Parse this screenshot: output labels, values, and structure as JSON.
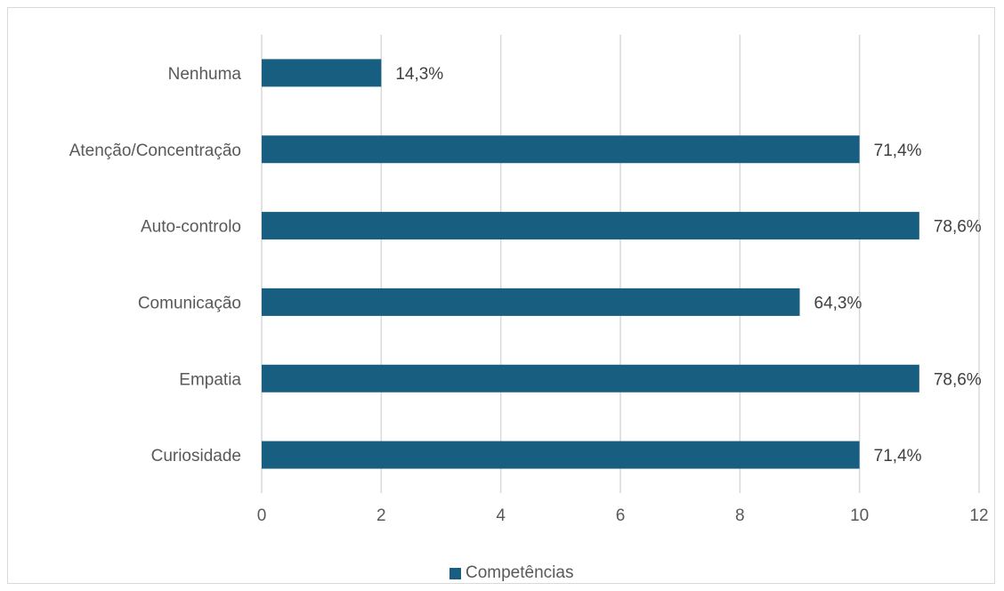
{
  "chart_data": {
    "type": "bar",
    "orientation": "horizontal",
    "categories": [
      "Nenhuma",
      "Atenção/Concentração",
      "Auto-controlo",
      "Comunicação",
      "Empatia",
      "Curiosidade"
    ],
    "series": [
      {
        "name": "Competências",
        "values": [
          2,
          10,
          11,
          9,
          11,
          10
        ],
        "data_labels": [
          "14,3%",
          "71,4%",
          "78,6%",
          "64,3%",
          "78,6%",
          "71,4%"
        ],
        "color": "#175e80"
      }
    ],
    "xlim": [
      0,
      12
    ],
    "xticks": [
      "0",
      "2",
      "4",
      "6",
      "8",
      "10",
      "12"
    ],
    "grid": "vertical",
    "legend": "bottom",
    "title": "",
    "xlabel": "",
    "ylabel": ""
  }
}
